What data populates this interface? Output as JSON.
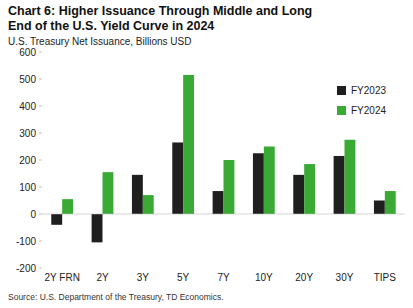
{
  "chart_data": {
    "type": "bar",
    "title": "Chart 6: Higher Issuance Through Middle and Long End of the U.S. Yield Curve in 2024",
    "subtitle": "U.S. Treasury Net Issuance, Billions USD",
    "source": "Source: U.S. Department of the Treasury, TD Economics.",
    "categories": [
      "2Y FRN",
      "2Y",
      "3Y",
      "5Y",
      "7Y",
      "10Y",
      "20Y",
      "30Y",
      "TIPS"
    ],
    "series": [
      {
        "name": "FY2023",
        "color": "#1f1f1f",
        "values": [
          -40,
          -105,
          145,
          265,
          85,
          225,
          145,
          215,
          50
        ]
      },
      {
        "name": "FY2024",
        "color": "#3aaa35",
        "values": [
          55,
          155,
          70,
          515,
          200,
          250,
          185,
          275,
          85
        ]
      }
    ],
    "ylim": [
      -200,
      600
    ],
    "yticks": [
      -200,
      -100,
      0,
      100,
      200,
      300,
      400,
      500,
      600
    ],
    "grid": false,
    "legend": "upper right"
  }
}
